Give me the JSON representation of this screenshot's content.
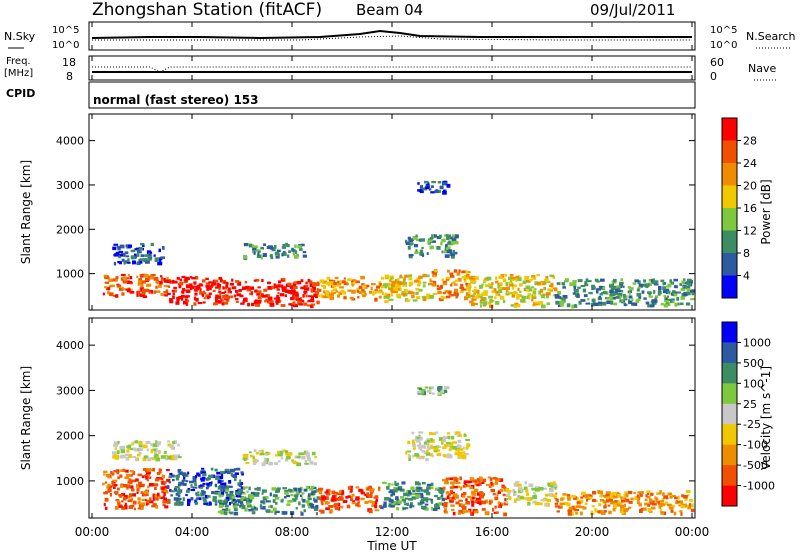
{
  "header": {
    "title": "Zhongshan Station (fitACF)",
    "beam": "Beam 04",
    "date": "09/Jul/2011"
  },
  "top_panels": {
    "nsky_label": "N.Sky",
    "nsearch_label": "N.Search",
    "nsky_ticks": [
      "10^5",
      "10^0"
    ],
    "nsearch_ticks": [
      "10^5",
      "10^0"
    ],
    "freq_label": "Freq.",
    "freq_unit": "[MHz]",
    "freq_ticks": [
      "18",
      "8"
    ],
    "nave_label": "Nave",
    "nave_ticks": [
      "60",
      "0"
    ],
    "cpid_label": "CPID",
    "cpid_text": "normal (fast stereo) 153"
  },
  "colors": {
    "power_scale": [
      "#0000ff",
      "#2d5aa0",
      "#3c8c64",
      "#7dc83c",
      "#f0c800",
      "#f08c00",
      "#f05000",
      "#ff0000"
    ],
    "velocity_scale": [
      "#ff0000",
      "#f05000",
      "#f08c00",
      "#f0c800",
      "#c8c8c8",
      "#7dc83c",
      "#3c8c64",
      "#2d5aa0",
      "#0000ff"
    ]
  },
  "chart_data": [
    {
      "type": "heatmap",
      "name": "Power",
      "ylabel": "Slant Range [km]",
      "y_ticks": [
        1000,
        2000,
        3000,
        4000
      ],
      "ylim": [
        180,
        4600
      ],
      "colorbar_label": "Power [dB]",
      "colorbar_ticks": [
        "28",
        "24",
        "20",
        "16",
        "12",
        "8",
        "4"
      ],
      "blobs": [
        {
          "x": [
            0.4,
            3.0
          ],
          "y": [
            500,
            1000
          ],
          "level": 6
        },
        {
          "x": [
            3.0,
            6.0
          ],
          "y": [
            350,
            950
          ],
          "level": 7
        },
        {
          "x": [
            6.0,
            9.0
          ],
          "y": [
            300,
            900
          ],
          "level": 7
        },
        {
          "x": [
            9.0,
            11.5
          ],
          "y": [
            450,
            950
          ],
          "level": 5
        },
        {
          "x": [
            11.5,
            13.5
          ],
          "y": [
            400,
            1000
          ],
          "level": 4
        },
        {
          "x": [
            13.5,
            15.0
          ],
          "y": [
            450,
            1100
          ],
          "level": 5
        },
        {
          "x": [
            15.0,
            18.5
          ],
          "y": [
            300,
            1000
          ],
          "level": 4
        },
        {
          "x": [
            18.5,
            24.0
          ],
          "y": [
            300,
            900
          ],
          "level": 2
        },
        {
          "x": [
            0.8,
            2.8
          ],
          "y": [
            1250,
            1700
          ],
          "level": 1
        },
        {
          "x": [
            6.0,
            8.5
          ],
          "y": [
            1400,
            1700
          ],
          "level": 2
        },
        {
          "x": [
            12.5,
            14.5
          ],
          "y": [
            1400,
            1900
          ],
          "level": 2
        },
        {
          "x": [
            13.0,
            14.2
          ],
          "y": [
            2850,
            3100
          ],
          "level": 1
        }
      ]
    },
    {
      "type": "heatmap",
      "name": "Velocity",
      "xlabel": "Time UT",
      "ylabel": "Slant Range [km]",
      "x_ticks": [
        "00:00",
        "04:00",
        "08:00",
        "12:00",
        "16:00",
        "20:00",
        "00:00"
      ],
      "xlim": [
        0,
        24
      ],
      "y_ticks": [
        1000,
        2000,
        3000,
        4000
      ],
      "ylim": [
        180,
        4600
      ],
      "colorbar_label": "Velocity [m s^-1]",
      "colorbar_ticks": [
        "1000",
        "500",
        "100",
        "25",
        "-25",
        "-100",
        "-500",
        "-1000"
      ],
      "blobs": [
        {
          "x": [
            0.4,
            3.0
          ],
          "y": [
            400,
            1300
          ],
          "level": 1
        },
        {
          "x": [
            3.0,
            6.0
          ],
          "y": [
            500,
            1300
          ],
          "level": 7
        },
        {
          "x": [
            5.0,
            9.0
          ],
          "y": [
            300,
            900
          ],
          "level": 6
        },
        {
          "x": [
            9.0,
            11.5
          ],
          "y": [
            350,
            900
          ],
          "level": 1
        },
        {
          "x": [
            11.5,
            14.0
          ],
          "y": [
            400,
            1000
          ],
          "level": 6
        },
        {
          "x": [
            14.0,
            16.5
          ],
          "y": [
            300,
            1100
          ],
          "level": 1
        },
        {
          "x": [
            16.5,
            18.5
          ],
          "y": [
            500,
            1000
          ],
          "level": 4
        },
        {
          "x": [
            18.5,
            24.0
          ],
          "y": [
            300,
            800
          ],
          "level": 2
        },
        {
          "x": [
            0.8,
            3.5
          ],
          "y": [
            1500,
            1900
          ],
          "level": 4
        },
        {
          "x": [
            6.0,
            9.0
          ],
          "y": [
            1400,
            1700
          ],
          "level": 4
        },
        {
          "x": [
            12.5,
            15.0
          ],
          "y": [
            1500,
            2100
          ],
          "level": 4
        },
        {
          "x": [
            13.0,
            14.2
          ],
          "y": [
            2950,
            3100
          ],
          "level": 5
        }
      ]
    }
  ]
}
